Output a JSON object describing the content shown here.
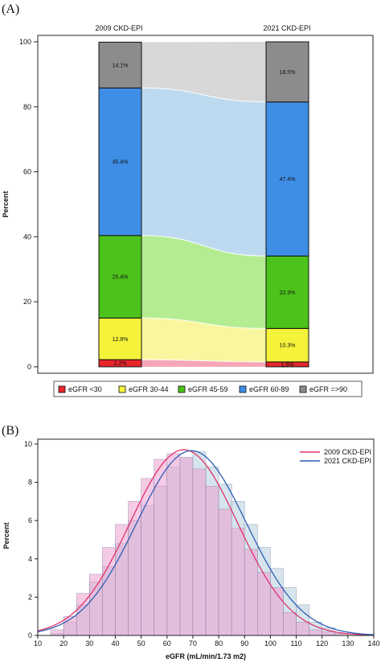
{
  "chart_data": [
    {
      "panel_label": "(A)",
      "type": "bar",
      "subtype": "stacked-100-alluvial",
      "categories": [
        "2009 CKD-EPI",
        "2021 CKD-EPI"
      ],
      "ylabel": "Percent",
      "ylim": [
        0,
        100
      ],
      "yticks": [
        "0",
        "20",
        "40",
        "60",
        "80",
        "100"
      ],
      "grid": false,
      "legend_position": "bottom",
      "series": [
        {
          "name": "eGFR <30",
          "color": "#e8262b",
          "flow_color": "#f7a1b4",
          "values": [
            2.2,
            1.5
          ],
          "labels": [
            "2.2%",
            "1.5%"
          ]
        },
        {
          "name": "eGFR 30-44",
          "color": "#f5f23a",
          "flow_color": "#f8f59a",
          "values": [
            12.8,
            10.3
          ],
          "labels": [
            "12.8%",
            "10.3%"
          ]
        },
        {
          "name": "eGFR 45-59",
          "color": "#4cc21b",
          "flow_color": "#b0eb8c",
          "values": [
            25.4,
            22.3
          ],
          "labels": [
            "25.4%",
            "22.3%"
          ]
        },
        {
          "name": "eGFR 60-89",
          "color": "#3f8ee6",
          "flow_color": "#b8d7ee",
          "values": [
            45.4,
            47.4
          ],
          "labels": [
            "45.4%",
            "47.4%"
          ]
        },
        {
          "name": "eGFR =>90",
          "color": "#8c8c8c",
          "flow_color": "#d6d6d6",
          "values": [
            14.1,
            18.5
          ],
          "labels": [
            "14.1%",
            "18.5%"
          ]
        }
      ]
    },
    {
      "panel_label": "(B)",
      "type": "bar",
      "subtype": "overlaid-histogram-with-normal-curves",
      "xlabel": "eGFR (mL/min/1.73 m2)",
      "ylabel": "Percent",
      "xlim": [
        10,
        140
      ],
      "ylim": [
        0,
        10
      ],
      "xticks": [
        "10",
        "20",
        "30",
        "40",
        "50",
        "60",
        "70",
        "80",
        "90",
        "100",
        "110",
        "120",
        "130",
        "140"
      ],
      "yticks": [
        "0",
        "2",
        "4",
        "6",
        "8",
        "10"
      ],
      "bin_width": 5,
      "bin_starts": [
        15,
        20,
        25,
        30,
        35,
        40,
        45,
        50,
        55,
        60,
        65,
        70,
        75,
        80,
        85,
        90,
        95,
        100,
        105,
        110,
        115,
        120,
        125,
        130
      ],
      "grid": false,
      "legend_position": "top-right",
      "series": [
        {
          "name": "2009 CKD-EPI",
          "color": "#e0336b",
          "fill": "#ec9fd0",
          "curve": {
            "mean": 66.5,
            "sd": 20.8,
            "peak": 9.7
          },
          "values": [
            0.3,
            1.0,
            2.2,
            3.2,
            4.6,
            5.8,
            7.0,
            8.2,
            9.2,
            9.5,
            9.3,
            8.7,
            7.8,
            6.6,
            5.6,
            4.5,
            3.3,
            2.5,
            1.2,
            0.7,
            0.3,
            0.2,
            0.1,
            0.0
          ]
        },
        {
          "name": "2021 CKD-EPI",
          "color": "#2f5fb4",
          "fill": "#cfe0ea",
          "curve": {
            "mean": 69.5,
            "sd": 21.3,
            "peak": 9.65
          },
          "values": [
            0.1,
            0.7,
            1.6,
            2.8,
            3.6,
            4.8,
            6.0,
            6.8,
            7.8,
            8.8,
            9.3,
            9.6,
            8.8,
            7.9,
            7.0,
            5.8,
            4.6,
            3.5,
            2.5,
            1.6,
            0.7,
            0.4,
            0.1,
            0.0
          ]
        }
      ]
    }
  ]
}
